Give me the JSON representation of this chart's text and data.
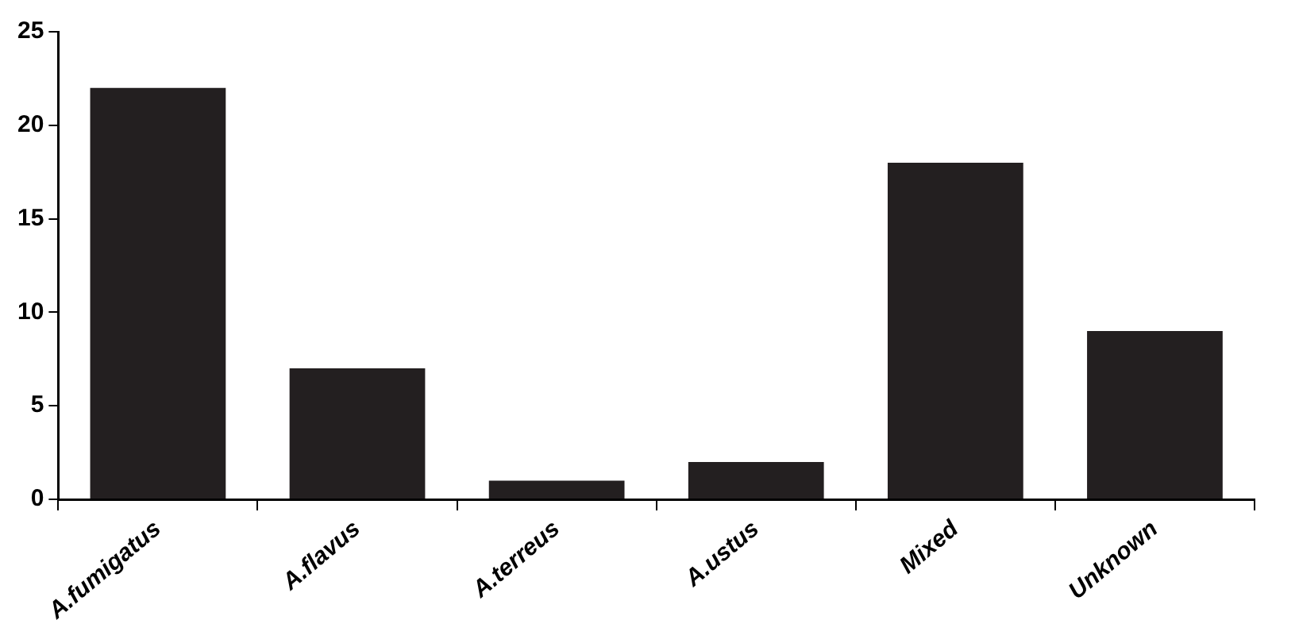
{
  "chart_data": {
    "type": "bar",
    "categories": [
      "A.fumigatus",
      "A.flavus",
      "A.terreus",
      "A.ustus",
      "Mixed",
      "Unknown"
    ],
    "values": [
      22,
      7,
      1,
      2,
      18,
      9
    ],
    "color": "#231f20",
    "ylim": [
      0,
      25
    ],
    "yticks": [
      0,
      5,
      10,
      15,
      20,
      25
    ],
    "grid": false,
    "legend": false
  }
}
